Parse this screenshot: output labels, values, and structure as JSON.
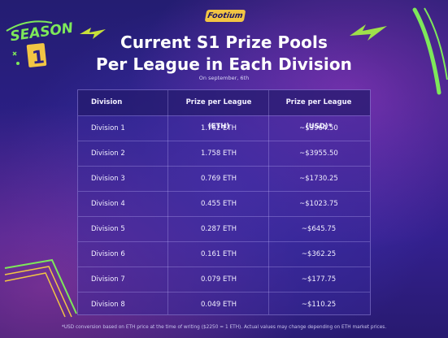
{
  "logo_text": "Footium",
  "badge": {
    "line1": "SEASON",
    "line2": "1"
  },
  "title_line1": "Current S1 Prize Pools",
  "title_line2": "Per League in Each Division",
  "date": "On september, 6th",
  "columns": [
    "Division",
    "Prize per League (ETH)",
    "Prize per League (USD)*"
  ],
  "rows": [
    {
      "division": "Division 1",
      "eth": "1.762 ETH",
      "usd": "~$3964.50"
    },
    {
      "division": "Division 2",
      "eth": "1.758 ETH",
      "usd": "~$3955.50"
    },
    {
      "division": "Division 3",
      "eth": "0.769 ETH",
      "usd": "~$1730.25"
    },
    {
      "division": "Division 4",
      "eth": "0.455 ETH",
      "usd": "~$1023.75"
    },
    {
      "division": "Division 5",
      "eth": "0.287 ETH",
      "usd": "~$645.75"
    },
    {
      "division": "Division 6",
      "eth": "0.161 ETH",
      "usd": "~$362.25"
    },
    {
      "division": "Division 7",
      "eth": "0.079 ETH",
      "usd": "~$177.75"
    },
    {
      "division": "Division 8",
      "eth": "0.049 ETH",
      "usd": "~$110.25"
    }
  ],
  "footnote": "*USD conversion based on ETH price at the time of writing ($2250 = 1 ETH). Actual values may change depending on ETH market prices.",
  "colors": {
    "accent_yellow": "#f2c544",
    "accent_green": "#7ee85a",
    "background": "#2b1f86"
  },
  "icons": [
    "lightning-bolt-icon",
    "sparkle-icon"
  ]
}
